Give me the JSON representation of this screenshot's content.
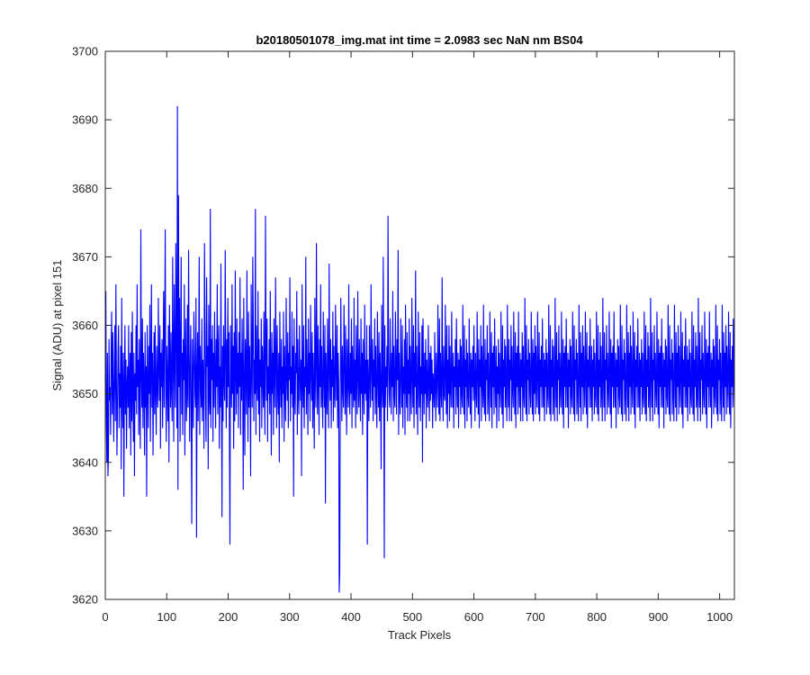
{
  "chart_data": {
    "type": "line",
    "title": "b20180501078_img.mat int time = 2.0983 sec  NaN nm BS04",
    "xlabel": "Track Pixels",
    "ylabel": "Signal (ADU) at pixel 151",
    "xlim": [
      0,
      1024
    ],
    "ylim": [
      3620,
      3700
    ],
    "xticks": [
      0,
      100,
      200,
      300,
      400,
      500,
      600,
      700,
      800,
      900,
      1000
    ],
    "yticks": [
      3620,
      3630,
      3640,
      3650,
      3660,
      3670,
      3680,
      3690,
      3700
    ],
    "grid": false,
    "legend": false,
    "line_color": "#0000ff",
    "axes_color": "#262626",
    "series": [
      {
        "values": [
          3652,
          3665,
          3646,
          3640,
          3656,
          3638,
          3641,
          3658,
          3649,
          3651,
          3644,
          3656,
          3662,
          3647,
          3659,
          3650,
          3643,
          3654,
          3660,
          3646,
          3666,
          3652,
          3641,
          3649,
          3656,
          3660,
          3645,
          3653,
          3648,
          3657,
          3639,
          3664,
          3650,
          3645,
          3656,
          3635,
          3651,
          3660,
          3647,
          3655,
          3642,
          3651,
          3654,
          3648,
          3660,
          3645,
          3652,
          3656,
          3641,
          3659,
          3646,
          3662,
          3650,
          3643,
          3656,
          3638,
          3653,
          3649,
          3660,
          3647,
          3666,
          3651,
          3655,
          3644,
          3658,
          3650,
          3642,
          3674,
          3653,
          3648,
          3661,
          3645,
          3656,
          3652,
          3641,
          3659,
          3648,
          3654,
          3635,
          3660,
          3651,
          3645,
          3657,
          3650,
          3663,
          3643,
          3653,
          3666,
          3648,
          3656,
          3641,
          3652,
          3659,
          3647,
          3660,
          3650,
          3644,
          3657,
          3651,
          3648,
          3664,
          3654,
          3649,
          3660,
          3642,
          3656,
          3651,
          3658,
          3645,
          3653,
          3665,
          3648,
          3660,
          3674,
          3650,
          3643,
          3657,
          3652,
          3646,
          3660,
          3640,
          3663,
          3655,
          3648,
          3659,
          3651,
          3646,
          3670,
          3656,
          3643,
          3666,
          3654,
          3648,
          3672,
          3660,
          3645,
          3692,
          3636,
          3679,
          3651,
          3664,
          3643,
          3657,
          3670,
          3647,
          3656,
          3644,
          3658,
          3652,
          3666,
          3641,
          3655,
          3661,
          3646,
          3650,
          3663,
          3648,
          3671,
          3656,
          3643,
          3654,
          3660,
          3647,
          3631,
          3658,
          3651,
          3645,
          3662,
          3657,
          3650,
          3648,
          3664,
          3629,
          3653,
          3659,
          3646,
          3655,
          3670,
          3644,
          3657,
          3652,
          3648,
          3661,
          3646,
          3655,
          3652,
          3642,
          3672,
          3660,
          3649,
          3643,
          3667,
          3654,
          3657,
          3639,
          3663,
          3650,
          3647,
          3677,
          3645,
          3658,
          3652,
          3660,
          3643,
          3656,
          3648,
          3662,
          3653,
          3645,
          3658,
          3651,
          3666,
          3647,
          3656,
          3660,
          3642,
          3654,
          3648,
          3669,
          3651,
          3632,
          3657,
          3646,
          3660,
          3652,
          3649,
          3671,
          3656,
          3645,
          3658,
          3648,
          3664,
          3651,
          3659,
          3644,
          3628,
          3660,
          3653,
          3648,
          3666,
          3650,
          3657,
          3642,
          3659,
          3646,
          3668,
          3653,
          3647,
          3661,
          3650,
          3656,
          3645,
          3659,
          3651,
          3667,
          3644,
          3656,
          3649,
          3661,
          3653,
          3636,
          3664,
          3650,
          3641,
          3658,
          3655,
          3647,
          3668,
          3652,
          3643,
          3662,
          3648,
          3657,
          3651,
          3638,
          3666,
          3654,
          3648,
          3670,
          3660,
          3646,
          3655,
          3650,
          3677,
          3644,
          3660,
          3652,
          3649,
          3665,
          3647,
          3658,
          3643,
          3655,
          3651,
          3661,
          3645,
          3657,
          3653,
          3648,
          3662,
          3650,
          3644,
          3676,
          3657,
          3649,
          3661,
          3643,
          3654,
          3650,
          3658,
          3647,
          3665,
          3652,
          3641,
          3659,
          3650,
          3656,
          3644,
          3661,
          3653,
          3648,
          3667,
          3655,
          3645,
          3660,
          3651,
          3647,
          3656,
          3640,
          3662,
          3653,
          3648,
          3658,
          3645,
          3654,
          3650,
          3662,
          3643,
          3657,
          3651,
          3646,
          3664,
          3653,
          3649,
          3659,
          3645,
          3656,
          3652,
          3667,
          3646,
          3654,
          3650,
          3662,
          3648,
          3657,
          3635,
          3661,
          3651,
          3647,
          3656,
          3653,
          3665,
          3644,
          3658,
          3650,
          3647,
          3660,
          3653,
          3649,
          3655,
          3638,
          3666,
          3652,
          3648,
          3660,
          3645,
          3654,
          3651,
          3670,
          3647,
          3658,
          3652,
          3644,
          3661,
          3650,
          3656,
          3646,
          3663,
          3654,
          3649,
          3659,
          3645,
          3656,
          3650,
          3642,
          3664,
          3653,
          3648,
          3672,
          3655,
          3647,
          3660,
          3652,
          3644,
          3658,
          3651,
          3666,
          3648,
          3657,
          3650,
          3645,
          3662,
          3653,
          3648,
          3660,
          3634,
          3656,
          3651,
          3647,
          3661,
          3652,
          3645,
          3669,
          3654,
          3649,
          3658,
          3645,
          3655,
          3651,
          3662,
          3646,
          3657,
          3650,
          3648,
          3663,
          3654,
          3649,
          3660,
          3645,
          3656,
          3652,
          3621,
          3624,
          3650,
          3664,
          3654,
          3646,
          3657,
          3651,
          3648,
          3663,
          3655,
          3647,
          3660,
          3651,
          3644,
          3658,
          3653,
          3648,
          3666,
          3651,
          3647,
          3656,
          3650,
          3661,
          3645,
          3657,
          3652,
          3648,
          3664,
          3649,
          3655,
          3645,
          3660,
          3652,
          3647,
          3665,
          3653,
          3648,
          3658,
          3651,
          3646,
          3661,
          3650,
          3656,
          3644,
          3658,
          3652,
          3647,
          3663,
          3650,
          3655,
          3649,
          3660,
          3628,
          3655,
          3651,
          3646,
          3660,
          3652,
          3648,
          3666,
          3654,
          3649,
          3658,
          3646,
          3655,
          3651,
          3661,
          3647,
          3657,
          3650,
          3645,
          3662,
          3653,
          3648,
          3659,
          3646,
          3656,
          3651,
          3639,
          3663,
          3652,
          3648,
          3670,
          3651,
          3626,
          3660,
          3648,
          3654,
          3651,
          3657,
          3646,
          3676,
          3656,
          3650,
          3648,
          3661,
          3653,
          3647,
          3656,
          3651,
          3665,
          3646,
          3657,
          3650,
          3648,
          3662,
          3654,
          3647,
          3658,
          3652,
          3671,
          3644,
          3656,
          3650,
          3647,
          3661,
          3653,
          3648,
          3660,
          3645,
          3654,
          3650,
          3658,
          3644,
          3663,
          3652,
          3648,
          3659,
          3646,
          3655,
          3650,
          3661,
          3646,
          3657,
          3651,
          3647,
          3664,
          3653,
          3648,
          3660,
          3645,
          3656,
          3651,
          3668,
          3647,
          3657,
          3650,
          3644,
          3662,
          3653,
          3648,
          3659,
          3646,
          3654,
          3650,
          3660,
          3640,
          3661,
          3652,
          3647,
          3656,
          3650,
          3658,
          3645,
          3655,
          3651,
          3648,
          3660,
          3652,
          3646,
          3656,
          3649,
          3657,
          3650,
          3655,
          3645,
          3653,
          3651,
          3648,
          3659,
          3651,
          3646,
          3656,
          3652,
          3648,
          3663,
          3653,
          3647,
          3661,
          3646,
          3656,
          3651,
          3648,
          3667,
          3652,
          3646,
          3657,
          3650,
          3649,
          3663,
          3653,
          3647,
          3660,
          3645,
          3655,
          3650,
          3660,
          3646,
          3657,
          3651,
          3648,
          3662,
          3653,
          3648,
          3656,
          3645,
          3654,
          3651,
          3658,
          3647,
          3661,
          3652,
          3648,
          3656,
          3645,
          3655,
          3651,
          3658,
          3647,
          3657,
          3650,
          3648,
          3663,
          3652,
          3647,
          3660,
          3645,
          3655,
          3651,
          3658,
          3646,
          3656,
          3650,
          3648,
          3661,
          3653,
          3647,
          3656,
          3645,
          3655,
          3651,
          3657,
          3649,
          3660,
          3652,
          3646,
          3656,
          3651,
          3648,
          3662,
          3653,
          3647,
          3658,
          3645,
          3655,
          3651,
          3660,
          3646,
          3657,
          3652,
          3648,
          3663,
          3650,
          3647,
          3658,
          3646,
          3655,
          3652,
          3660,
          3647,
          3656,
          3650,
          3646,
          3662,
          3653,
          3648,
          3659,
          3645,
          3656,
          3651,
          3657,
          3647,
          3661,
          3652,
          3648,
          3657,
          3645,
          3654,
          3650,
          3658,
          3646,
          3656,
          3651,
          3648,
          3662,
          3652,
          3647,
          3660,
          3645,
          3655,
          3651,
          3658,
          3648,
          3657,
          3650,
          3646,
          3663,
          3653,
          3648,
          3658,
          3646,
          3655,
          3652,
          3660,
          3646,
          3657,
          3651,
          3648,
          3662,
          3652,
          3647,
          3659,
          3645,
          3656,
          3651,
          3657,
          3647,
          3662,
          3652,
          3648,
          3656,
          3646,
          3655,
          3651,
          3659,
          3646,
          3657,
          3650,
          3648,
          3664,
          3653,
          3647,
          3660,
          3646,
          3655,
          3652,
          3658,
          3647,
          3656,
          3651,
          3648,
          3662,
          3653,
          3647,
          3658,
          3646,
          3656,
          3650,
          3660,
          3647,
          3657,
          3652,
          3648,
          3662,
          3653,
          3647,
          3659,
          3646,
          3655,
          3651,
          3657,
          3648,
          3661,
          3652,
          3648,
          3656,
          3646,
          3655,
          3651,
          3658,
          3647,
          3656,
          3650,
          3648,
          3663,
          3652,
          3647,
          3660,
          3646,
          3655,
          3651,
          3658,
          3647,
          3657,
          3650,
          3646,
          3664,
          3653,
          3648,
          3659,
          3646,
          3655,
          3652,
          3660,
          3647,
          3656,
          3651,
          3648,
          3662,
          3652,
          3647,
          3658,
          3645,
          3656,
          3651,
          3657,
          3648,
          3661,
          3652,
          3648,
          3656,
          3645,
          3655,
          3651,
          3658,
          3647,
          3657,
          3650,
          3648,
          3662,
          3653,
          3647,
          3660,
          3646,
          3655,
          3652,
          3658,
          3647,
          3656,
          3650,
          3646,
          3663,
          3653,
          3648,
          3659,
          3646,
          3656,
          3651,
          3660,
          3647,
          3657,
          3652,
          3648,
          3662,
          3653,
          3647,
          3659,
          3645,
          3655,
          3651,
          3657,
          3648,
          3661,
          3652,
          3648,
          3657,
          3646,
          3655,
          3651,
          3658,
          3647,
          3656,
          3650,
          3648,
          3662,
          3652,
          3647,
          3660,
          3646,
          3655,
          3651,
          3659,
          3648,
          3657,
          3650,
          3646,
          3664,
          3653,
          3648,
          3659,
          3646,
          3655,
          3652,
          3660,
          3647,
          3656,
          3651,
          3648,
          3662,
          3653,
          3647,
          3658,
          3645,
          3656,
          3651,
          3657,
          3648,
          3662,
          3652,
          3648,
          3656,
          3645,
          3655,
          3651,
          3658,
          3647,
          3657,
          3650,
          3648,
          3663,
          3652,
          3647,
          3660,
          3646,
          3655,
          3652,
          3658,
          3647,
          3656,
          3650,
          3646,
          3663,
          3653,
          3648,
          3659,
          3646,
          3656,
          3651,
          3660,
          3647,
          3657,
          3652,
          3648,
          3662,
          3653,
          3647,
          3659,
          3645,
          3655,
          3651,
          3657,
          3648,
          3661,
          3652,
          3648,
          3656,
          3646,
          3655,
          3651,
          3658,
          3647,
          3656,
          3650,
          3648,
          3662,
          3652,
          3647,
          3660,
          3646,
          3655,
          3651,
          3659,
          3648,
          3657,
          3650,
          3646,
          3664,
          3653,
          3648,
          3659,
          3646,
          3655,
          3652,
          3660,
          3647,
          3656,
          3651,
          3648,
          3662,
          3653,
          3647,
          3658,
          3645,
          3656,
          3651,
          3657,
          3648,
          3661,
          3652,
          3648,
          3656,
          3645,
          3655,
          3651,
          3658,
          3647,
          3657,
          3650,
          3648,
          3663,
          3652,
          3647,
          3660,
          3646,
          3655,
          3652,
          3658,
          3647,
          3656,
          3650,
          3646,
          3663,
          3653,
          3648,
          3659,
          3646,
          3656,
          3651,
          3660,
          3647,
          3657,
          3652,
          3648,
          3662,
          3653,
          3647,
          3659,
          3645,
          3655,
          3651,
          3657,
          3648,
          3661,
          3652,
          3648,
          3657,
          3646,
          3655,
          3651,
          3658,
          3647,
          3656,
          3650,
          3648,
          3662,
          3652,
          3647,
          3660,
          3646,
          3655,
          3651,
          3659,
          3648,
          3657,
          3650,
          3646,
          3664,
          3653,
          3648,
          3659,
          3646,
          3655,
          3652,
          3660,
          3647,
          3656,
          3651,
          3648,
          3662,
          3653,
          3647,
          3658,
          3645,
          3656,
          3651,
          3657,
          3648,
          3662,
          3652,
          3648,
          3656,
          3645,
          3655,
          3651,
          3658,
          3647,
          3657,
          3650,
          3648,
          3663,
          3652,
          3647,
          3660,
          3646,
          3655,
          3652,
          3658,
          3647,
          3656,
          3650,
          3646,
          3663,
          3653,
          3648,
          3659,
          3646,
          3656,
          3651,
          3660,
          3647,
          3657,
          3652,
          3648,
          3662,
          3653,
          3647,
          3659,
          3645,
          3655,
          3651,
          3657,
          3648,
          3661,
          3652,
          3648
        ]
      }
    ]
  }
}
